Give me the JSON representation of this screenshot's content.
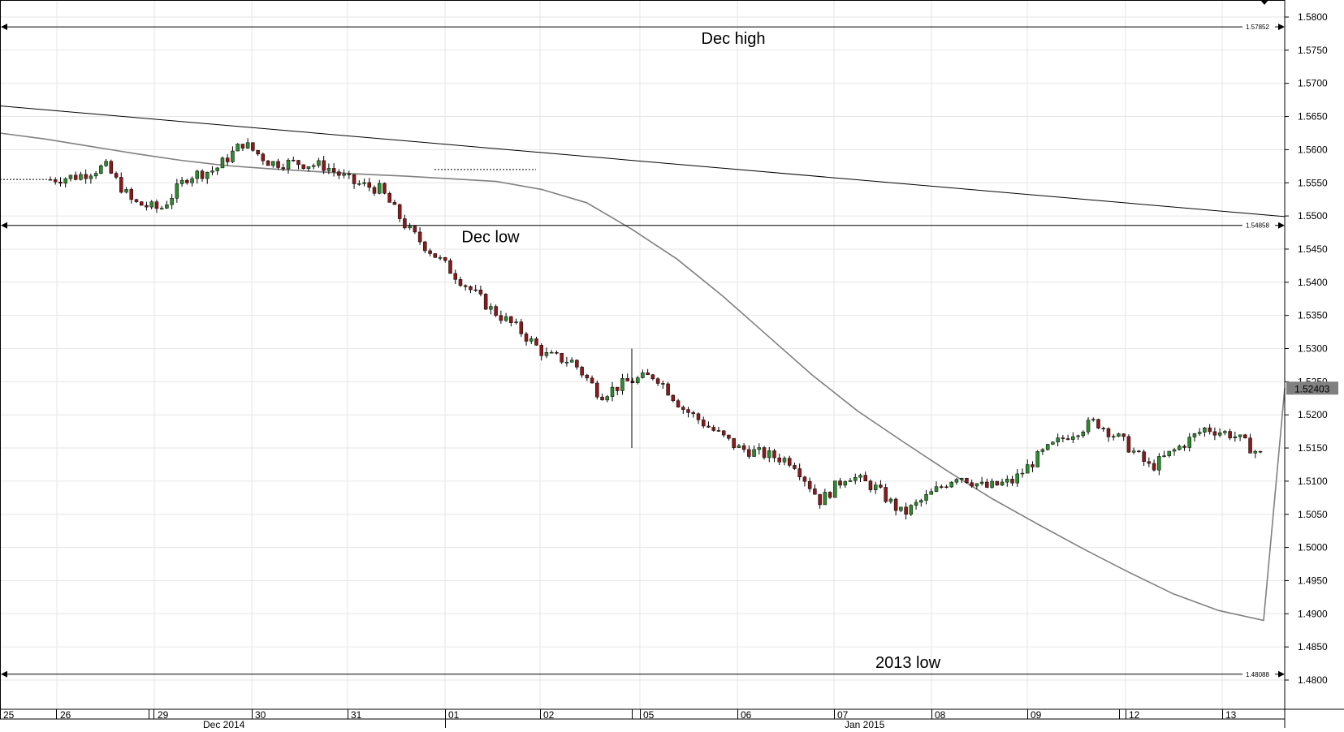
{
  "chart_data": {
    "type": "candlestick",
    "title": "",
    "xlabel": "",
    "ylabel": "",
    "ylim": [
      1.4758,
      1.582
    ],
    "y_ticks": [
      "1.5800",
      "1.5750",
      "1.5700",
      "1.5650",
      "1.5600",
      "1.5550",
      "1.5500",
      "1.5450",
      "1.5400",
      "1.5350",
      "1.5300",
      "1.5250",
      "1.5200",
      "1.5150",
      "1.5100",
      "1.5050",
      "1.5000",
      "1.4950",
      "1.4900",
      "1.4850",
      "1.4800"
    ],
    "day_labels": [
      "25",
      "26",
      "29",
      "30",
      "31",
      "01",
      "02",
      "05",
      "06",
      "07",
      "08",
      "09",
      "12",
      "13"
    ],
    "month_labels": [
      "Dec 2014",
      "Jan 2015"
    ],
    "current_price_label": "1.52403",
    "current_price": 1.52403,
    "levels": [
      {
        "name": "Dec high",
        "value": 1.57852,
        "value_label": "1.57852"
      },
      {
        "name": "Dec low",
        "value": 1.54858,
        "value_label": "1.54858"
      },
      {
        "name": "2013 low",
        "value": 1.48088,
        "value_label": "1.48088"
      }
    ],
    "trendline": {
      "start": 1.5666,
      "end": 1.5499
    },
    "moving_average": [
      1.5625,
      1.5616,
      1.5605,
      1.5594,
      1.5584,
      1.5576,
      1.5571,
      1.5567,
      1.5563,
      1.556,
      1.5556,
      1.5552,
      1.554,
      1.552,
      1.548,
      1.5435,
      1.538,
      1.532,
      1.526,
      1.5206,
      1.516,
      1.5115,
      1.5073,
      1.5035,
      1.4998,
      1.4963,
      1.493,
      1.4905,
      1.489
    ],
    "key_closes": [
      1.5555,
      1.556,
      1.5575,
      1.552,
      1.551,
      1.556,
      1.557,
      1.561,
      1.558,
      1.558,
      1.5575,
      1.555,
      1.554,
      1.548,
      1.544,
      1.54,
      1.536,
      1.533,
      1.529,
      1.528,
      1.523,
      1.525,
      1.526,
      1.521,
      1.518,
      1.515,
      1.514,
      1.513,
      1.507,
      1.511,
      1.509,
      1.505,
      1.508,
      1.511,
      1.509,
      1.51,
      1.514,
      1.517,
      1.519,
      1.516,
      1.512,
      1.515,
      1.518,
      1.517,
      1.514
    ],
    "candles": []
  }
}
